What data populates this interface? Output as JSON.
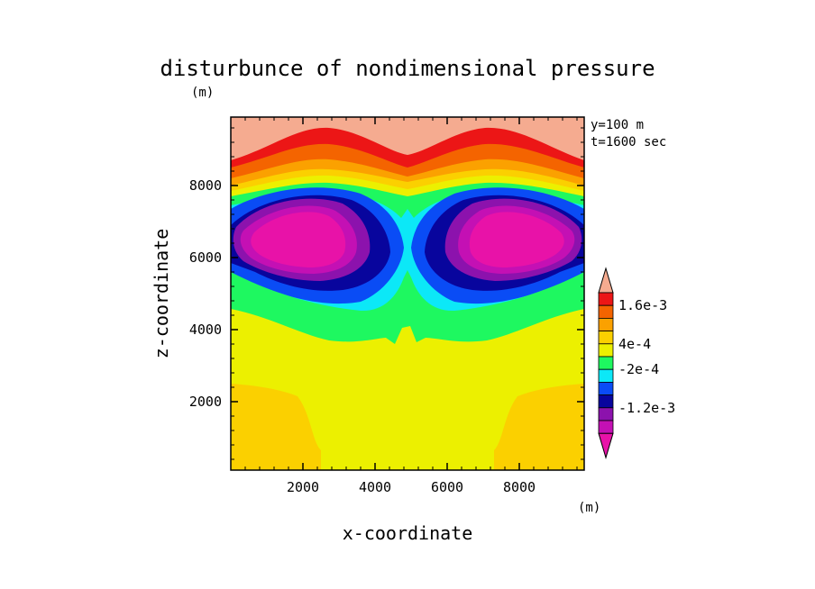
{
  "chart_data": {
    "type": "heatmap",
    "title": "disturbunce of nondimensional pressure",
    "top_unit": "(m)",
    "xlabel": "x-coordinate",
    "ylabel": "z-coordinate",
    "xlim": [
      0,
      9800
    ],
    "ylim": [
      100,
      9900
    ],
    "x_ticks": [
      "2000",
      "4000",
      "6000",
      "8000"
    ],
    "y_ticks": [
      "2000",
      "4000",
      "6000",
      "8000"
    ],
    "annotation_y": "y=100 m",
    "annotation_t": "t=1600 sec",
    "colorbar": {
      "labels": [
        "1.6e-3",
        "4e-4",
        "-2e-4",
        "-1.2e-3"
      ],
      "unit": "(m)",
      "colors": [
        "#f5ab90",
        "#ec1616",
        "#f46400",
        "#fba100",
        "#fbd000",
        "#ecf000",
        "#1ef860",
        "#0ce8f7",
        "#0a4cf5",
        "#08059d",
        "#8c12ad",
        "#c410b4",
        "#e812a8"
      ]
    }
  }
}
